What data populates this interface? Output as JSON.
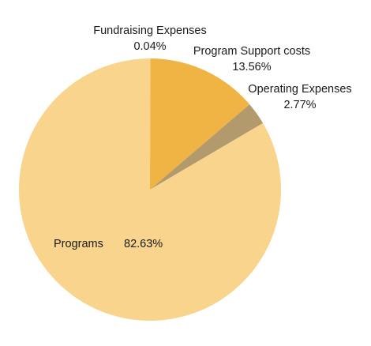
{
  "chart_data": {
    "type": "pie",
    "slices": [
      {
        "label": "Fundraising Expenses",
        "value": 0.04,
        "display": "0.04%",
        "color": "#F9E2AE"
      },
      {
        "label": "Program Support costs",
        "value": 13.56,
        "display": "13.56%",
        "color": "#F0B445"
      },
      {
        "label": "Operating Expenses",
        "value": 2.77,
        "display": "2.77%",
        "color": "#B29A6C"
      },
      {
        "label": "Programs",
        "value": 82.63,
        "display": "82.63%",
        "color": "#F8D48C"
      }
    ],
    "start_at": "top",
    "direction": "clockwise"
  }
}
